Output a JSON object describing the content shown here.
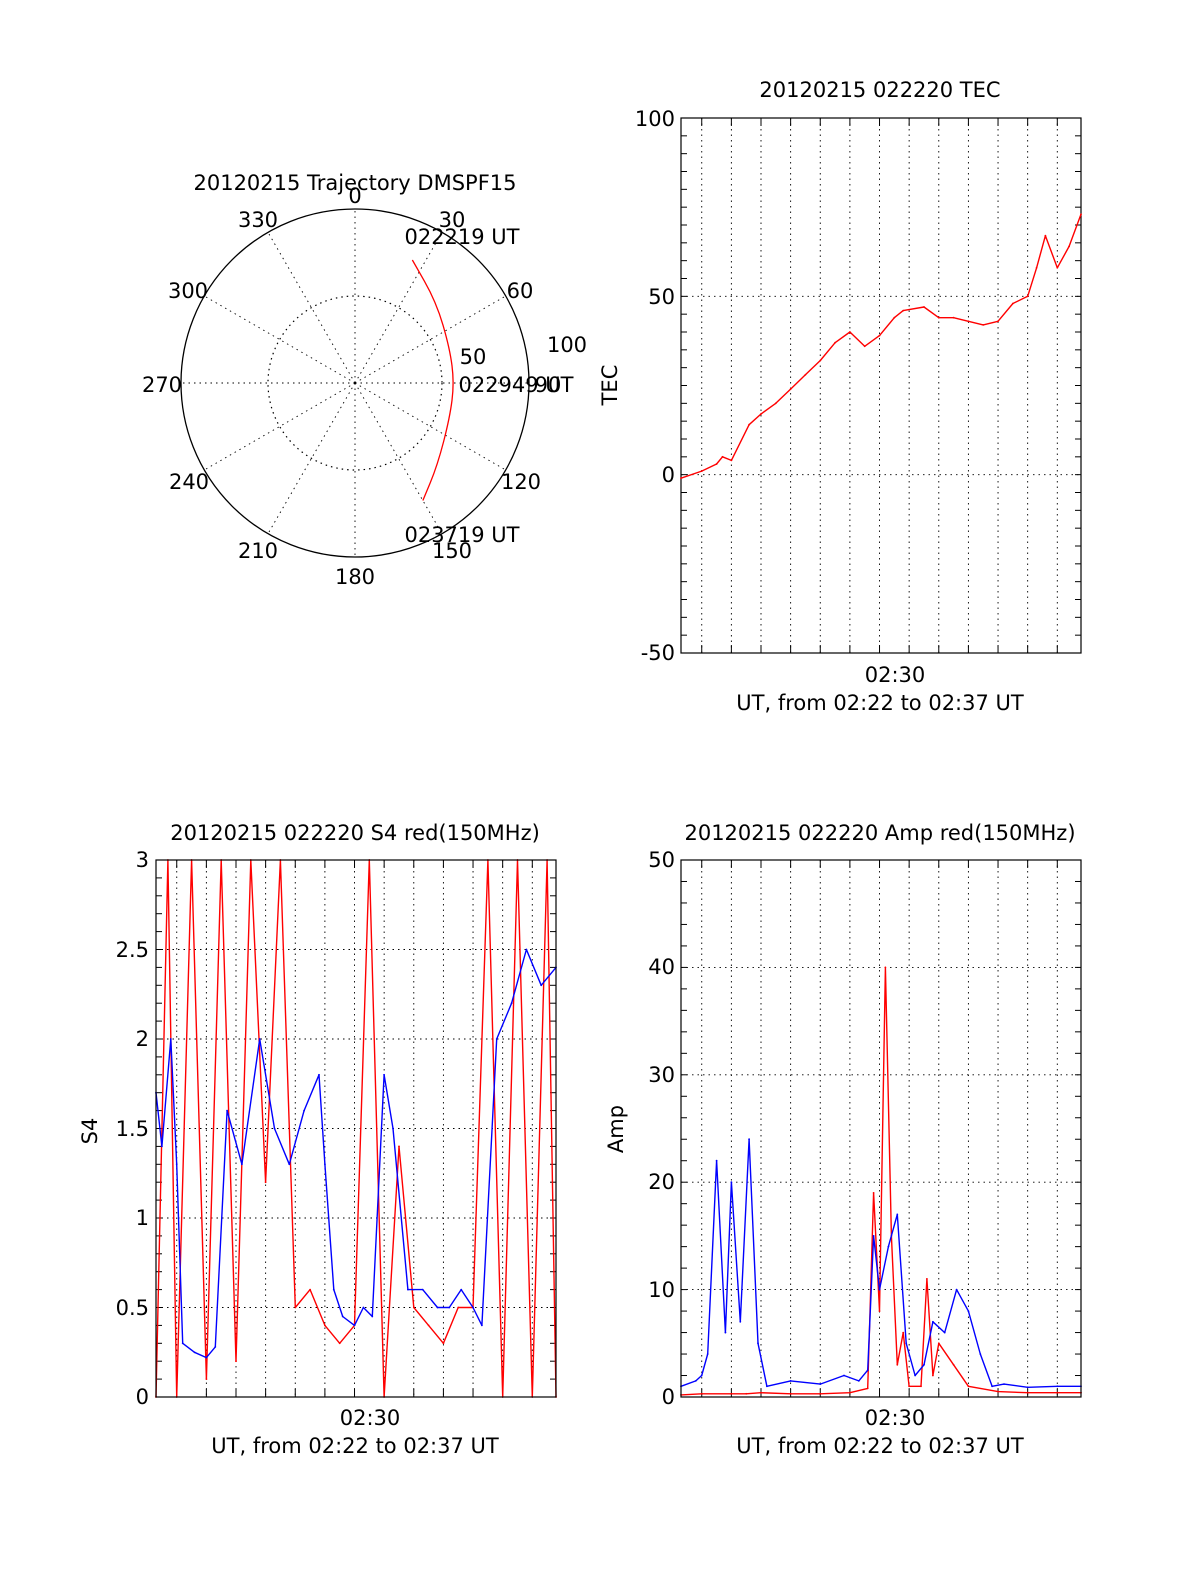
{
  "colors": {
    "red": "#ff0000",
    "blue": "#0000ff",
    "axis": "#000000"
  },
  "chart_data": [
    {
      "id": "trajectory",
      "type": "polar",
      "title": "20120215 Trajectory DMSPF15",
      "angle_labels": [
        "0",
        "30",
        "60",
        "90",
        "120",
        "150",
        "180",
        "210",
        "240",
        "270",
        "300",
        "330"
      ],
      "radial_labels": [
        "50",
        "100"
      ],
      "radial_range": [
        0,
        100
      ],
      "track": {
        "color": "red",
        "points": [
          {
            "az": 25,
            "r": 78
          },
          {
            "az": 45,
            "r": 66
          },
          {
            "az": 70,
            "r": 58
          },
          {
            "az": 90,
            "r": 57
          },
          {
            "az": 110,
            "r": 58
          },
          {
            "az": 135,
            "r": 67
          },
          {
            "az": 150,
            "r": 78
          }
        ]
      },
      "annotations": [
        "022219 UT",
        "022949 UT",
        "023719 UT"
      ]
    },
    {
      "id": "tec",
      "type": "line",
      "title": "20120215 022220 TEC",
      "ylabel": "TEC",
      "xlabel": "UT, from 02:22 to 02:37 UT",
      "xtick_labels": [
        "02:30"
      ],
      "ylim": [
        -50,
        100
      ],
      "ytick_labels": [
        "-50",
        "0",
        "50",
        "100"
      ],
      "x_minutes": [
        2.3,
        15.8
      ],
      "grid": true,
      "series": [
        {
          "color": "red",
          "x": [
            2.3,
            3.0,
            3.5,
            3.7,
            4.0,
            4.6,
            5.0,
            5.5,
            6.0,
            6.5,
            7.0,
            7.5,
            8.0,
            8.5,
            9.0,
            9.5,
            9.8,
            10.5,
            11.0,
            11.5,
            12.0,
            12.5,
            13.0,
            13.5,
            14.0,
            14.3,
            14.6,
            15.0,
            15.4,
            15.8
          ],
          "y": [
            -1,
            1,
            3,
            5,
            4,
            14,
            17,
            20,
            24,
            28,
            32,
            37,
            40,
            36,
            39,
            44,
            46,
            47,
            44,
            44,
            43,
            42,
            43,
            48,
            50,
            58,
            67,
            58,
            64,
            73
          ]
        }
      ]
    },
    {
      "id": "s4",
      "type": "line",
      "title": "20120215 022220 S4 red(150MHz)",
      "ylabel": "S4",
      "xlabel": "UT, from 02:22 to 02:37 UT",
      "xtick_labels": [
        "02:30"
      ],
      "ylim": [
        0,
        3
      ],
      "ytick_labels": [
        "0",
        "0.5",
        "1",
        "1.5",
        "2",
        "2.5",
        "3"
      ],
      "x_minutes": [
        2.3,
        15.8
      ],
      "grid": true,
      "series": [
        {
          "name": "red",
          "color": "red",
          "x": [
            2.3,
            2.7,
            3.0,
            3.5,
            4.0,
            4.5,
            5.0,
            5.5,
            6.0,
            6.5,
            7.0,
            7.5,
            8.0,
            8.5,
            9.0,
            9.5,
            10.0,
            10.5,
            11.0,
            11.5,
            12.0,
            12.5,
            13.0,
            13.5,
            14.0,
            14.5,
            15.0,
            15.5,
            15.8
          ],
          "y": [
            0.0,
            3.0,
            0.0,
            3.0,
            0.1,
            3.0,
            0.2,
            3.0,
            1.2,
            3.0,
            0.5,
            0.6,
            0.4,
            0.3,
            0.4,
            3.0,
            0.0,
            1.4,
            0.5,
            0.4,
            0.3,
            0.5,
            0.5,
            3.0,
            0.0,
            3.0,
            0.0,
            3.0,
            0.0
          ]
        },
        {
          "name": "blue",
          "color": "blue",
          "x": [
            2.3,
            2.5,
            2.8,
            3.0,
            3.2,
            3.6,
            4.0,
            4.3,
            4.7,
            5.2,
            5.8,
            6.3,
            6.8,
            7.3,
            7.8,
            8.0,
            8.3,
            8.6,
            9.0,
            9.3,
            9.6,
            10.0,
            10.3,
            10.8,
            11.3,
            11.8,
            12.2,
            12.6,
            13.0,
            13.3,
            13.8,
            14.3,
            14.8,
            15.3,
            15.8
          ],
          "y": [
            1.7,
            1.4,
            2.0,
            1.3,
            0.3,
            0.25,
            0.22,
            0.28,
            1.6,
            1.3,
            2.0,
            1.5,
            1.3,
            1.6,
            1.8,
            1.3,
            0.6,
            0.45,
            0.4,
            0.5,
            0.45,
            1.8,
            1.5,
            0.6,
            0.6,
            0.5,
            0.5,
            0.6,
            0.5,
            0.4,
            2.0,
            2.2,
            2.5,
            2.3,
            2.4
          ]
        }
      ]
    },
    {
      "id": "amp",
      "type": "line",
      "title": "20120215 022220 Amp red(150MHz)",
      "ylabel": "Amp",
      "xlabel": "UT, from 02:22 to 02:37 UT",
      "xtick_labels": [
        "02:30"
      ],
      "ylim": [
        0,
        50
      ],
      "ytick_labels": [
        "0",
        "10",
        "20",
        "30",
        "40",
        "50"
      ],
      "x_minutes": [
        2.3,
        15.8
      ],
      "grid": true,
      "series": [
        {
          "name": "red",
          "color": "red",
          "x": [
            2.3,
            3.0,
            4.0,
            4.5,
            5.0,
            6.0,
            7.0,
            8.0,
            8.6,
            8.8,
            9.0,
            9.2,
            9.4,
            9.6,
            9.8,
            10.0,
            10.4,
            10.6,
            10.8,
            11.0,
            11.5,
            12.0,
            13.0,
            14.0,
            15.0,
            15.8
          ],
          "y": [
            0.2,
            0.3,
            0.3,
            0.3,
            0.4,
            0.3,
            0.3,
            0.4,
            0.8,
            19.0,
            8.0,
            40.0,
            15.0,
            3.0,
            6.0,
            1.0,
            1.0,
            11.0,
            2.0,
            5.0,
            3.0,
            1.0,
            0.5,
            0.4,
            0.4,
            0.4
          ]
        },
        {
          "name": "blue",
          "color": "blue",
          "x": [
            2.3,
            2.8,
            3.0,
            3.2,
            3.5,
            3.8,
            4.0,
            4.3,
            4.6,
            4.9,
            5.2,
            6.0,
            7.0,
            7.8,
            8.3,
            8.6,
            8.8,
            9.0,
            9.3,
            9.6,
            9.9,
            10.2,
            10.5,
            10.8,
            11.2,
            11.6,
            12.0,
            12.4,
            12.8,
            13.2,
            14.0,
            15.0,
            15.8
          ],
          "y": [
            1.0,
            1.5,
            2.0,
            4.0,
            22.0,
            6.0,
            20.0,
            7.0,
            24.0,
            5.0,
            1.0,
            1.5,
            1.2,
            2.0,
            1.5,
            2.5,
            15.0,
            10.0,
            14.0,
            17.0,
            5.0,
            2.0,
            3.0,
            7.0,
            6.0,
            10.0,
            8.0,
            4.0,
            1.0,
            1.2,
            0.9,
            1.0,
            1.0
          ]
        }
      ]
    }
  ]
}
